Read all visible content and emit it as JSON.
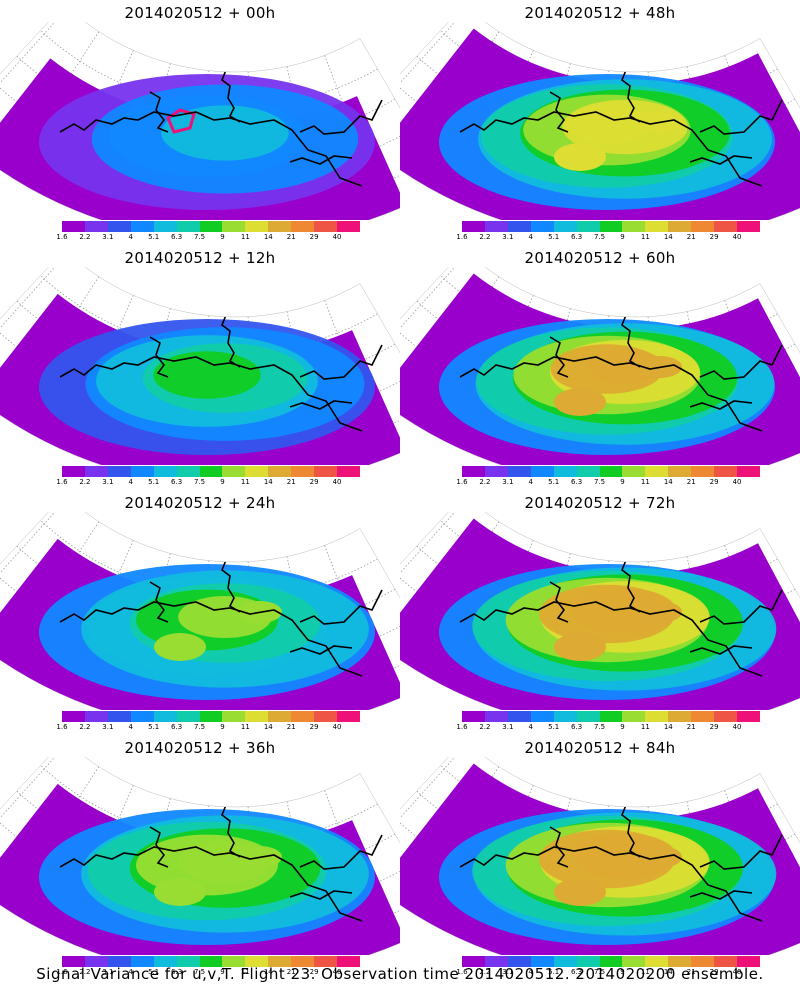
{
  "panels": [
    {
      "title": "2014020512 + 00h",
      "col": 0,
      "row": 0,
      "lead": 0
    },
    {
      "title": "2014020512 + 48h",
      "col": 1,
      "row": 0,
      "lead": 48
    },
    {
      "title": "2014020512 + 12h",
      "col": 0,
      "row": 1,
      "lead": 12
    },
    {
      "title": "2014020512 + 60h",
      "col": 1,
      "row": 1,
      "lead": 60
    },
    {
      "title": "2014020512 + 24h",
      "col": 0,
      "row": 2,
      "lead": 24
    },
    {
      "title": "2014020512 + 72h",
      "col": 1,
      "row": 2,
      "lead": 72
    },
    {
      "title": "2014020512 + 36h",
      "col": 0,
      "row": 3,
      "lead": 36
    },
    {
      "title": "2014020512 + 84h",
      "col": 1,
      "row": 3,
      "lead": 84
    }
  ],
  "colorbar": {
    "labels": [
      "1.6",
      "2.2",
      "3.1",
      "4",
      "5.1",
      "6.3",
      "7.5",
      "9",
      "11",
      "14",
      "21",
      "29",
      "40"
    ],
    "colors": [
      "#9900cc",
      "#7733ee",
      "#3355ee",
      "#1188ff",
      "#11bbdd",
      "#11ccaa",
      "#11cc22",
      "#99dd33",
      "#dddd33",
      "#ddaa33",
      "#ee8833",
      "#ee5544",
      "#ee1177"
    ]
  },
  "caption": "Signal Variance for u,v,T. Flight 23. Observation time 2014020512. 2014020200 ensemble."
}
